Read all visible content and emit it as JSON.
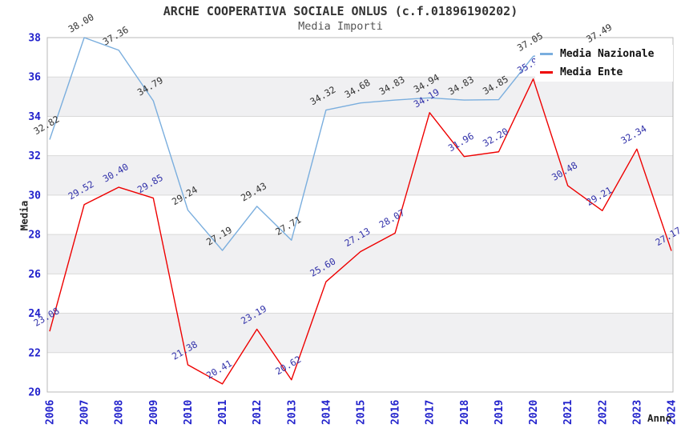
{
  "chart_data": {
    "type": "line",
    "title": "ARCHE COOPERATIVA SOCIALE ONLUS (c.f.01896190202)",
    "subtitle": "Media Importi",
    "xlabel": "Anno",
    "ylabel": "Media",
    "x": [
      2006,
      2007,
      2008,
      2009,
      2010,
      2011,
      2012,
      2013,
      2014,
      2015,
      2016,
      2017,
      2018,
      2019,
      2020,
      2021,
      2022,
      2023,
      2024
    ],
    "ylim": [
      20,
      38
    ],
    "ytick_step": 2,
    "grid": "horizontal",
    "background_stripes": "alternating gray bands every 2 units",
    "legend_position": "top-right",
    "series": [
      {
        "name": "Media Nazionale",
        "color": "#7aaede",
        "label_color": "#333333",
        "values": [
          32.82,
          38.0,
          37.36,
          34.79,
          29.24,
          27.19,
          29.43,
          27.71,
          34.32,
          34.68,
          34.83,
          34.94,
          34.83,
          34.85,
          37.05,
          37.27,
          37.49,
          null,
          null
        ],
        "labels": [
          "32.82",
          "38.00",
          "37.36",
          "34.79",
          "29.24",
          "27.19",
          "29.43",
          "27.71",
          "34.32",
          "34.68",
          "34.83",
          "34.94",
          "34.83",
          "34.85",
          "37.05",
          null,
          "37.49",
          null,
          null
        ]
      },
      {
        "name": "Media Ente",
        "color": "#ee0000",
        "label_color": "#3333aa",
        "values": [
          23.08,
          29.52,
          30.4,
          29.85,
          21.38,
          20.41,
          23.19,
          20.62,
          25.6,
          27.13,
          28.07,
          34.19,
          31.96,
          32.2,
          35.9,
          30.48,
          29.21,
          32.34,
          27.17
        ],
        "labels": [
          "23.08",
          "29.52",
          "30.40",
          "29.85",
          "21.38",
          "20.41",
          "23.19",
          "20.62",
          "25.60",
          "27.13",
          "28.07",
          "34.19",
          "31.96",
          "32.20",
          "35.9",
          "30.48",
          "29.21",
          "32.34",
          "27.17"
        ]
      }
    ]
  },
  "colors": {
    "tick_label": "#2222cc",
    "grid_line": "#d9d9d9",
    "stripe": "#f0f0f2",
    "plot_border": "#b8b8b8",
    "title_text": "#333333",
    "subtitle_text": "#555555",
    "legend_text": "#111111",
    "background": "#ffffff"
  }
}
